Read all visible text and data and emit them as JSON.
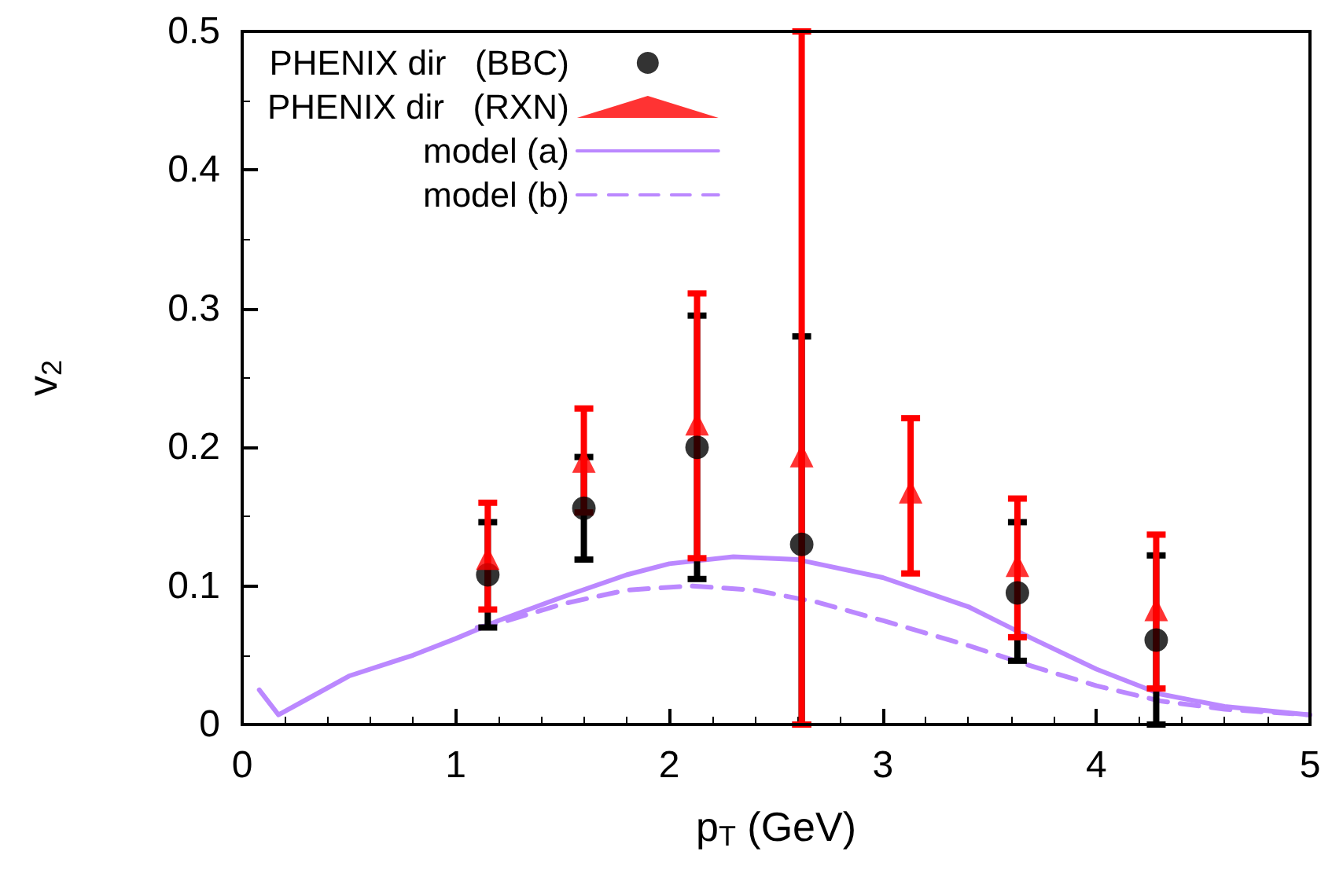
{
  "chart_data": {
    "type": "scatter",
    "xlabel": "p$_{T}$ (GeV)",
    "ylabel": "v$_{2}$",
    "xlim": [
      0,
      5
    ],
    "xticks": [
      0,
      1,
      2,
      3,
      4,
      5
    ],
    "ylim": [
      0,
      0.5
    ],
    "yticks": [
      0,
      0.1,
      0.2,
      0.3,
      0.4,
      0.5
    ],
    "grid": false,
    "legend": "top left",
    "series": [
      {
        "name": "PHENIX dir   (BBC)",
        "marker": "circle",
        "color": "#000000",
        "x": [
          1.15,
          1.6,
          2.13,
          2.62,
          3.63,
          4.28
        ],
        "values": [
          0.108,
          0.156,
          0.2,
          0.13,
          0.095,
          0.061
        ],
        "errors": [
          [
            0.07,
            0.146
          ],
          [
            0.119,
            0.193
          ],
          [
            0.105,
            0.295
          ],
          [
            0,
            0.28
          ],
          [
            0.046,
            0.146
          ],
          [
            0,
            0.122
          ]
        ]
      },
      {
        "name": "PHENIX dir   (RXN)",
        "marker": "triangle",
        "color": "#ff0000",
        "x": [
          1.15,
          1.6,
          2.13,
          2.62,
          3.13,
          3.63,
          4.28
        ],
        "values": [
          0.12,
          0.19,
          0.217,
          0.194,
          0.168,
          0.115,
          0.083
        ],
        "errors": [
          [
            0.083,
            0.16
          ],
          [
            0.153,
            0.228
          ],
          [
            0.12,
            0.311
          ],
          [
            0,
            0.5
          ],
          [
            0.109,
            0.221
          ],
          [
            0.063,
            0.163
          ],
          [
            0.026,
            0.137
          ]
        ]
      },
      {
        "name": "model (a)",
        "type": "line",
        "marker": "none",
        "line_style": "solid",
        "color": "#bb88ff",
        "x": [
          0.08,
          0.17,
          0.3,
          0.5,
          0.8,
          1.0,
          1.2,
          1.5,
          1.8,
          2.0,
          2.3,
          2.6,
          3.0,
          3.4,
          3.7,
          4.0,
          4.3,
          4.6,
          5.0
        ],
        "values": [
          0.025,
          0.007,
          0.018,
          0.035,
          0.05,
          0.062,
          0.075,
          0.092,
          0.108,
          0.116,
          0.121,
          0.119,
          0.106,
          0.085,
          0.062,
          0.04,
          0.022,
          0.013,
          0.007
        ]
      },
      {
        "name": "model (b)",
        "type": "line",
        "marker": "none",
        "line_style": "dashed",
        "color": "#bb88ff",
        "x": [
          1.1,
          1.2,
          1.5,
          1.8,
          2.1,
          2.4,
          2.7,
          3.0,
          3.4,
          3.7,
          4.0,
          4.3,
          4.6,
          5.0
        ],
        "values": [
          0.07,
          0.073,
          0.087,
          0.097,
          0.1,
          0.097,
          0.088,
          0.075,
          0.057,
          0.042,
          0.028,
          0.017,
          0.011,
          0.007
        ]
      }
    ]
  }
}
